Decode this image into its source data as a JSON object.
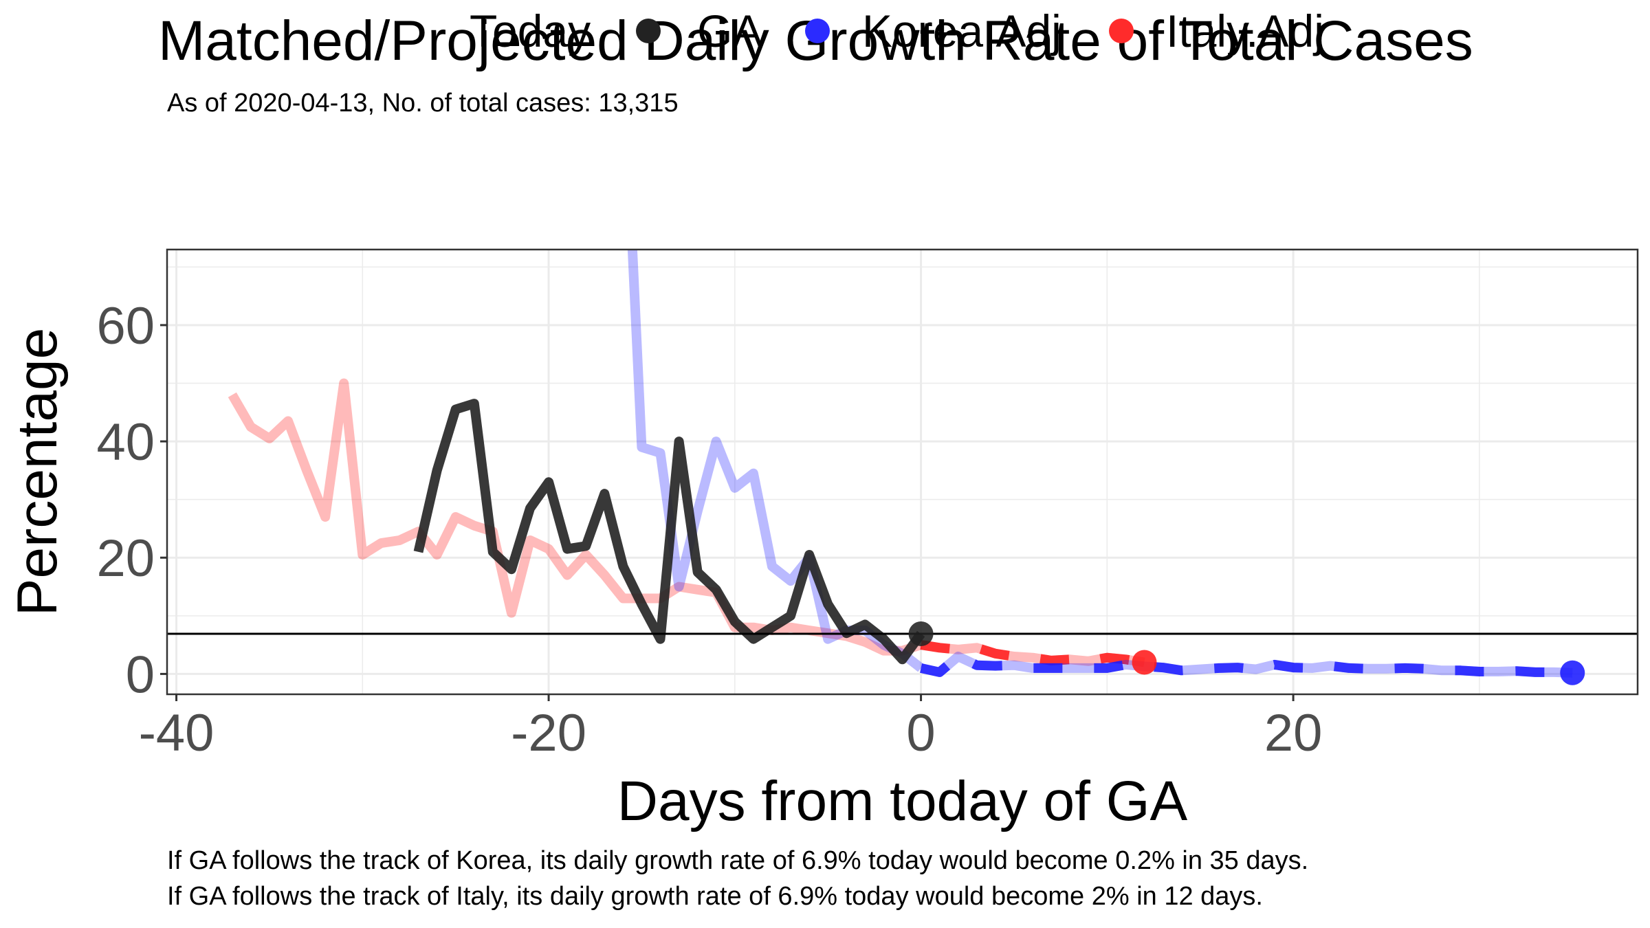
{
  "chart_data": {
    "type": "line",
    "title": "Matched/Projected Daily Growth Rate of Total Cases",
    "subtitle": "As of 2020-04-13, No. of total cases: 13,315",
    "xlabel": "Days from today of GA",
    "ylabel": "Percentage",
    "xlim": [
      -40.5,
      38.5
    ],
    "ylim": [
      -3.5,
      73
    ],
    "x_ticks": [
      -40,
      -20,
      0,
      20
    ],
    "y_ticks": [
      0,
      20,
      40,
      60
    ],
    "grid": true,
    "legend": {
      "title": "Today",
      "position": "top",
      "entries": [
        {
          "name": "GA",
          "color": "#222222"
        },
        {
          "name": "Korea.Adj",
          "color": "#1a1aff"
        },
        {
          "name": "Italy.Adj",
          "color": "#ff1a1a"
        }
      ]
    },
    "reference_line_y": 6.9,
    "today_points": [
      {
        "series": "GA",
        "x": 0,
        "y": 6.9
      },
      {
        "series": "Korea.Adj",
        "x": 35,
        "y": 0.2
      },
      {
        "series": "Italy.Adj",
        "x": 12,
        "y": 2
      }
    ],
    "series": [
      {
        "name": "Italy.Adj",
        "color": "#ff1a1a",
        "x": [
          -37,
          -36,
          -35,
          -34,
          -33,
          -32,
          -31,
          -30,
          -29,
          -28,
          -27,
          -26,
          -25,
          -24,
          -23,
          -22,
          -21,
          -20,
          -19,
          -18,
          -17,
          -16,
          -15,
          -14,
          -13,
          -12,
          -11,
          -10,
          -9,
          -8,
          -7,
          -6,
          -5,
          -4,
          -3,
          -2,
          -1,
          0
        ],
        "y": [
          48,
          42.5,
          40.5,
          43.5,
          35,
          27,
          50,
          20.5,
          22.5,
          23,
          24.5,
          20.5,
          27,
          25.5,
          24.5,
          10.5,
          23,
          21.5,
          17,
          20.5,
          17,
          13,
          13,
          13,
          15,
          14.5,
          14,
          8,
          8,
          7.5,
          8,
          7.5,
          7,
          6.5,
          5.5,
          4,
          4,
          5
        ],
        "projected_x": [
          0,
          1,
          2,
          3,
          4,
          5,
          6,
          7,
          8,
          9,
          10,
          11,
          12
        ],
        "projected_y": [
          5,
          4.5,
          4.2,
          4.5,
          3.5,
          3,
          2.8,
          2.3,
          2.5,
          2.2,
          2.8,
          2.5,
          2
        ]
      },
      {
        "name": "Korea.Adj",
        "color": "#1a1aff",
        "x": [
          -15.5,
          -15,
          -14,
          -13,
          -12,
          -11,
          -10,
          -9,
          -8,
          -7,
          -6,
          -5,
          -4,
          -3,
          -2,
          -1,
          0
        ],
        "y": [
          73,
          39,
          38,
          15,
          28,
          40,
          32,
          34.5,
          18.5,
          16,
          20,
          6,
          7.5,
          7.5,
          5,
          3.5,
          1
        ],
        "projected_x": [
          0,
          1,
          2,
          3,
          4,
          5,
          6,
          7,
          8,
          9,
          10,
          11,
          12,
          13,
          14,
          15,
          16,
          17,
          18,
          19,
          20,
          21,
          22,
          23,
          24,
          25,
          26,
          27,
          28,
          29,
          30,
          31,
          32,
          33,
          34,
          35
        ],
        "projected_y": [
          1,
          0.3,
          3,
          1.5,
          1.4,
          1.5,
          1,
          1,
          1,
          1,
          1,
          1.6,
          1.3,
          1.1,
          0.6,
          0.8,
          1,
          1.1,
          0.8,
          1.6,
          1.1,
          1,
          1.4,
          1,
          0.9,
          0.9,
          1,
          0.9,
          0.6,
          0.6,
          0.4,
          0.4,
          0.5,
          0.3,
          0.3,
          0.2
        ]
      },
      {
        "name": "GA",
        "color": "#222222",
        "x": [
          -27,
          -26,
          -25,
          -24,
          -23,
          -22,
          -21,
          -20,
          -19,
          -18,
          -17,
          -16,
          -15,
          -14,
          -13,
          -12,
          -11,
          -10,
          -9,
          -8,
          -7,
          -6,
          -5,
          -4,
          -3,
          -2,
          -1,
          0
        ],
        "y": [
          21,
          35,
          45.5,
          46.5,
          21,
          18,
          28.5,
          33,
          21.5,
          22,
          31,
          18.5,
          12,
          6,
          40,
          17.5,
          14.5,
          9,
          6,
          8,
          10,
          20.5,
          12,
          7,
          8.5,
          6,
          2.5,
          6.9
        ]
      }
    ]
  },
  "captions": {
    "line1": "If GA follows the track of Korea, its daily growth rate of 6.9% today would become 0.2% in 35 days.",
    "line2": "If GA follows the track of Italy, its daily growth rate of 6.9% today would become 2% in 12 days."
  }
}
